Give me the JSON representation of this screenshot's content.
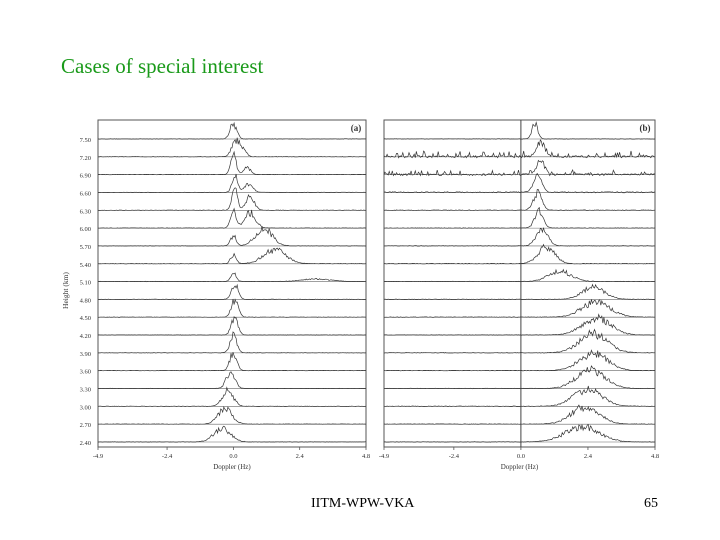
{
  "slide": {
    "title": "Cases of special interest",
    "footer_center": "IITM-WPW-VKA",
    "page_number": "65"
  },
  "colors": {
    "title": "#1a9a1a",
    "trace": "#333333",
    "axis": "#555555"
  },
  "chart_data": [
    {
      "type": "line",
      "panel_label": "(a)",
      "ylabel": "Height (km)",
      "xlabel": "Doppler (Hz)",
      "x_ticks": [
        "-4.9",
        "-2.4",
        "0.0",
        "2.4",
        "4.8"
      ],
      "x_tick_values": [
        -4.9,
        -2.4,
        0.0,
        2.4,
        4.8
      ],
      "xlim": [
        -4.9,
        4.8
      ],
      "y_ticks": [
        "7.50",
        "7.20",
        "6.90",
        "6.60",
        "6.30",
        "6.00",
        "5.70",
        "5.40",
        "5.10",
        "4.80",
        "4.50",
        "4.20",
        "3.90",
        "3.60",
        "3.30",
        "3.00",
        "2.70",
        "2.40"
      ],
      "heights_km": [
        7.5,
        7.2,
        6.9,
        6.6,
        6.3,
        6.0,
        5.7,
        5.4,
        5.1,
        4.8,
        4.5,
        4.2,
        3.9,
        3.6,
        3.3,
        3.0,
        2.7,
        2.4
      ],
      "zero_line": false,
      "series": [
        {
          "height_km": 7.5,
          "noise": 0.012,
          "peaks": [
            {
              "x": 0.0,
              "a": 0.9,
              "w": 0.12
            }
          ]
        },
        {
          "height_km": 7.2,
          "noise": 0.012,
          "peaks": [
            {
              "x": 0.1,
              "a": 1.0,
              "w": 0.15
            },
            {
              "x": 0.4,
              "a": 0.3,
              "w": 0.1
            }
          ]
        },
        {
          "height_km": 6.9,
          "noise": 0.012,
          "peaks": [
            {
              "x": 0.0,
              "a": 1.2,
              "w": 0.1
            },
            {
              "x": 0.5,
              "a": 0.4,
              "w": 0.12
            }
          ]
        },
        {
          "height_km": 6.6,
          "noise": 0.012,
          "peaks": [
            {
              "x": 0.05,
              "a": 1.0,
              "w": 0.1
            },
            {
              "x": 0.55,
              "a": 0.5,
              "w": 0.15
            }
          ]
        },
        {
          "height_km": 6.3,
          "noise": 0.012,
          "peaks": [
            {
              "x": 0.05,
              "a": 1.2,
              "w": 0.1
            },
            {
              "x": 0.6,
              "a": 0.8,
              "w": 0.15
            }
          ]
        },
        {
          "height_km": 6.0,
          "noise": 0.012,
          "peaks": [
            {
              "x": 0.0,
              "a": 1.0,
              "w": 0.1
            },
            {
              "x": 0.6,
              "a": 0.9,
              "w": 0.2
            }
          ]
        },
        {
          "height_km": 5.7,
          "noise": 0.012,
          "peaks": [
            {
              "x": 0.0,
              "a": 0.6,
              "w": 0.1
            },
            {
              "x": 1.1,
              "a": 1.0,
              "w": 0.3
            }
          ]
        },
        {
          "height_km": 5.4,
          "noise": 0.012,
          "peaks": [
            {
              "x": 0.0,
              "a": 0.5,
              "w": 0.1
            },
            {
              "x": 1.5,
              "a": 0.8,
              "w": 0.4
            }
          ]
        },
        {
          "height_km": 5.1,
          "noise": 0.012,
          "peaks": [
            {
              "x": 0.0,
              "a": 0.5,
              "w": 0.1
            },
            {
              "x": 3.0,
              "a": 0.15,
              "w": 0.5
            }
          ]
        },
        {
          "height_km": 4.8,
          "noise": 0.012,
          "peaks": [
            {
              "x": 0.05,
              "a": 0.9,
              "w": 0.12
            }
          ]
        },
        {
          "height_km": 4.5,
          "noise": 0.012,
          "peaks": [
            {
              "x": 0.05,
              "a": 1.0,
              "w": 0.12
            }
          ]
        },
        {
          "height_km": 4.2,
          "noise": 0.012,
          "peaks": [
            {
              "x": 0.05,
              "a": 1.0,
              "w": 0.12
            }
          ]
        },
        {
          "height_km": 3.9,
          "noise": 0.012,
          "peaks": [
            {
              "x": 0.0,
              "a": 1.0,
              "w": 0.12
            }
          ]
        },
        {
          "height_km": 3.6,
          "noise": 0.012,
          "peaks": [
            {
              "x": 0.0,
              "a": 1.1,
              "w": 0.12
            }
          ]
        },
        {
          "height_km": 3.3,
          "noise": 0.012,
          "peaks": [
            {
              "x": -0.1,
              "a": 1.0,
              "w": 0.15
            }
          ]
        },
        {
          "height_km": 3.0,
          "noise": 0.012,
          "peaks": [
            {
              "x": -0.2,
              "a": 0.9,
              "w": 0.2
            }
          ]
        },
        {
          "height_km": 2.7,
          "noise": 0.012,
          "peaks": [
            {
              "x": -0.3,
              "a": 0.9,
              "w": 0.25
            }
          ]
        },
        {
          "height_km": 2.4,
          "noise": 0.012,
          "peaks": [
            {
              "x": -0.4,
              "a": 0.8,
              "w": 0.3
            }
          ]
        }
      ]
    },
    {
      "type": "line",
      "panel_label": "(b)",
      "ylabel": "",
      "xlabel": "Doppler (Hz)",
      "x_ticks": [
        "-4.9",
        "-2.4",
        "0.0",
        "2.4",
        "4.8"
      ],
      "x_tick_values": [
        -4.9,
        -2.4,
        0.0,
        2.4,
        4.8
      ],
      "xlim": [
        -4.9,
        4.8
      ],
      "y_ticks": [],
      "heights_km": [
        7.5,
        7.2,
        6.9,
        6.6,
        6.3,
        6.0,
        5.7,
        5.4,
        5.1,
        4.8,
        4.5,
        4.2,
        3.9,
        3.6,
        3.3,
        3.0,
        2.7,
        2.4
      ],
      "zero_line": true,
      "series": [
        {
          "height_km": 7.5,
          "noise": 0.012,
          "peaks": [
            {
              "x": 0.5,
              "a": 0.9,
              "w": 0.1
            }
          ]
        },
        {
          "height_km": 7.2,
          "noise": 0.25,
          "peaks": [
            {
              "x": 0.7,
              "a": 0.8,
              "w": 0.15
            }
          ]
        },
        {
          "height_km": 6.9,
          "noise": 0.2,
          "peaks": [
            {
              "x": 0.7,
              "a": 0.8,
              "w": 0.15
            }
          ]
        },
        {
          "height_km": 6.6,
          "noise": 0.03,
          "peaks": [
            {
              "x": 0.6,
              "a": 0.9,
              "w": 0.15
            }
          ]
        },
        {
          "height_km": 6.3,
          "noise": 0.015,
          "peaks": [
            {
              "x": 0.6,
              "a": 1.0,
              "w": 0.15
            }
          ]
        },
        {
          "height_km": 6.0,
          "noise": 0.015,
          "peaks": [
            {
              "x": 0.65,
              "a": 1.0,
              "w": 0.15
            }
          ]
        },
        {
          "height_km": 5.7,
          "noise": 0.015,
          "peaks": [
            {
              "x": 0.75,
              "a": 1.0,
              "w": 0.2
            }
          ]
        },
        {
          "height_km": 5.4,
          "noise": 0.015,
          "peaks": [
            {
              "x": 0.9,
              "a": 1.0,
              "w": 0.3
            }
          ]
        },
        {
          "height_km": 5.1,
          "noise": 0.015,
          "peaks": [
            {
              "x": 1.4,
              "a": 0.6,
              "w": 0.4
            }
          ]
        },
        {
          "height_km": 4.8,
          "noise": 0.015,
          "peaks": [
            {
              "x": 2.6,
              "a": 0.7,
              "w": 0.4
            }
          ]
        },
        {
          "height_km": 4.5,
          "noise": 0.015,
          "peaks": [
            {
              "x": 2.7,
              "a": 0.9,
              "w": 0.5
            }
          ]
        },
        {
          "height_km": 4.2,
          "noise": 0.015,
          "peaks": [
            {
              "x": 2.7,
              "a": 1.0,
              "w": 0.5
            }
          ]
        },
        {
          "height_km": 3.9,
          "noise": 0.015,
          "peaks": [
            {
              "x": 2.6,
              "a": 1.1,
              "w": 0.5
            }
          ]
        },
        {
          "height_km": 3.6,
          "noise": 0.015,
          "peaks": [
            {
              "x": 2.6,
              "a": 1.0,
              "w": 0.5
            }
          ]
        },
        {
          "height_km": 3.3,
          "noise": 0.015,
          "peaks": [
            {
              "x": 2.5,
              "a": 1.1,
              "w": 0.5
            }
          ]
        },
        {
          "height_km": 3.0,
          "noise": 0.015,
          "peaks": [
            {
              "x": 2.4,
              "a": 1.0,
              "w": 0.5
            }
          ]
        },
        {
          "height_km": 2.7,
          "noise": 0.015,
          "peaks": [
            {
              "x": 2.3,
              "a": 1.0,
              "w": 0.5
            }
          ]
        },
        {
          "height_km": 2.4,
          "noise": 0.015,
          "peaks": [
            {
              "x": 2.2,
              "a": 0.9,
              "w": 0.6
            }
          ]
        }
      ]
    }
  ]
}
